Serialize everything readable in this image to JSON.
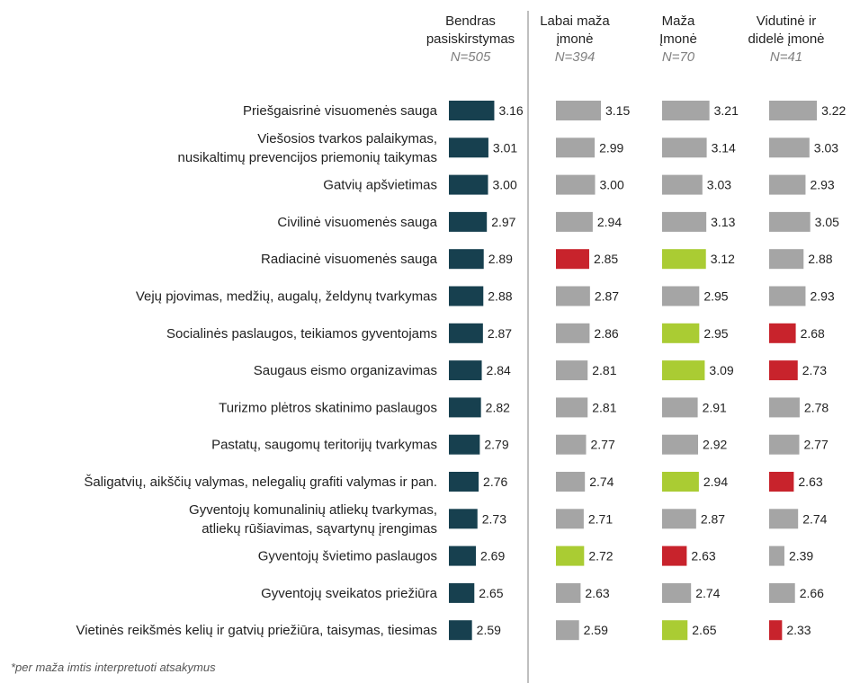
{
  "chart_data": {
    "type": "bar",
    "categories": [
      [
        "Priešgaisrinė visuomenės sauga"
      ],
      [
        "Viešosios tvarkos palaikymas,",
        "nusikaltimų prevencijos priemonių taikymas"
      ],
      [
        "Gatvių apšvietimas"
      ],
      [
        "Civilinė visuomenės sauga"
      ],
      [
        "Radiacinė visuomenės sauga"
      ],
      [
        "Vejų pjovimas, medžių, augalų, želdynų tvarkymas"
      ],
      [
        "Socialinės paslaugos, teikiamos gyventojams"
      ],
      [
        "Saugaus eismo organizavimas"
      ],
      [
        "Turizmo plėtros skatinimo paslaugos"
      ],
      [
        "Pastatų, saugomų teritorijų tvarkymas"
      ],
      [
        "Šaligatvių, aikščių valymas, nelegalių grafiti valymas ir pan."
      ],
      [
        "Gyventojų komunalinių atliekų tvarkymas,",
        "atliekų rūšiavimas, sąvartynų įrengimas"
      ],
      [
        "Gyventojų švietimo paslaugos"
      ],
      [
        "Gyventojų sveikatos priežiūra"
      ],
      [
        "Vietinės reikšmės kelių ir gatvių priežiūra, taisymas, tiesimas"
      ]
    ],
    "series": [
      {
        "name": "Bendras\npasiskirstymas",
        "n": "N=505",
        "values": [
          "3.16",
          "3.01",
          "3.00",
          "2.97",
          "2.89",
          "2.88",
          "2.87",
          "2.84",
          "2.82",
          "2.79",
          "2.76",
          "2.73",
          "2.69",
          "2.65",
          "2.59"
        ],
        "colors": [
          "dark",
          "dark",
          "dark",
          "dark",
          "dark",
          "dark",
          "dark",
          "dark",
          "dark",
          "dark",
          "dark",
          "dark",
          "dark",
          "dark",
          "dark"
        ]
      },
      {
        "name": "Labai maža\nįmonė",
        "n": "N=394",
        "values": [
          "3.15",
          "2.99",
          "3.00",
          "2.94",
          "2.85",
          "2.87",
          "2.86",
          "2.81",
          "2.81",
          "2.77",
          "2.74",
          "2.71",
          "2.72",
          "2.63",
          "2.59"
        ],
        "colors": [
          "gray",
          "gray",
          "gray",
          "gray",
          "red",
          "gray",
          "gray",
          "gray",
          "gray",
          "gray",
          "gray",
          "gray",
          "green",
          "gray",
          "gray"
        ]
      },
      {
        "name": "Maža\nĮmonė",
        "n": "N=70",
        "values": [
          "3.21",
          "3.14",
          "3.03",
          "3.13",
          "3.12",
          "2.95",
          "2.95",
          "3.09",
          "2.91",
          "2.92",
          "2.94",
          "2.87",
          "2.63",
          "2.74",
          "2.65"
        ],
        "colors": [
          "gray",
          "gray",
          "gray",
          "gray",
          "green",
          "gray",
          "green",
          "green",
          "gray",
          "gray",
          "green",
          "gray",
          "red",
          "gray",
          "green"
        ]
      },
      {
        "name": "Vidutinė ir\ndidelė įmonė",
        "n": "N=41",
        "values": [
          "3.22",
          "3.03",
          "2.93",
          "3.05",
          "2.88",
          "2.93",
          "2.68",
          "2.73",
          "2.78",
          "2.77",
          "2.63",
          "2.74",
          "2.39",
          "2.66",
          "2.33"
        ],
        "colors": [
          "gray",
          "gray",
          "gray",
          "gray",
          "gray",
          "gray",
          "red",
          "red",
          "gray",
          "gray",
          "red",
          "gray",
          "gray",
          "gray",
          "red"
        ]
      }
    ],
    "palette": {
      "dark": "#17404f",
      "gray": "#a5a5a5",
      "red": "#c8232c",
      "green": "#aacc33",
      "divider": "#bfbfbf"
    },
    "footnote": "*per maža imtis interpretuoti atsakymus"
  }
}
